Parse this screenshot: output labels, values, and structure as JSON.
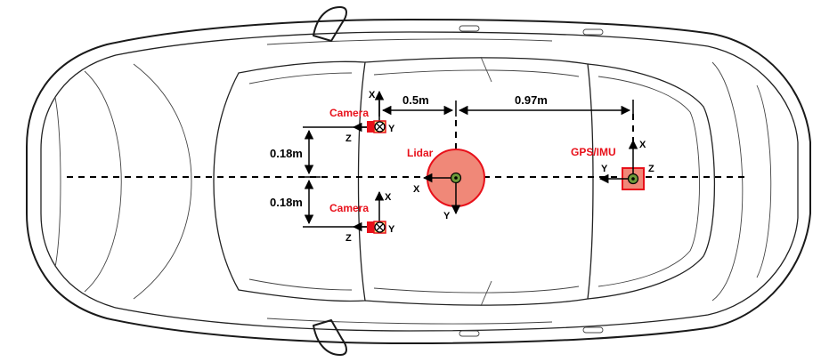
{
  "labels": {
    "camera_top": "Camera",
    "camera_bottom": "Camera",
    "lidar": "Lidar",
    "gps_imu": "GPS/IMU"
  },
  "dimensions": {
    "camera_lidar_dx": "0.5m",
    "lidar_gps_dx": "0.97m",
    "camera_top_dy": "0.18m",
    "camera_bottom_dy": "0.18m"
  },
  "axes": {
    "camera_top": {
      "x": "X",
      "y": "Y",
      "z": "Z"
    },
    "camera_bottom": {
      "x": "X",
      "y": "Y",
      "z": "Z"
    },
    "lidar": {
      "x": "X",
      "y": "Y"
    },
    "gps_imu": {
      "x": "X",
      "y": "Y",
      "z": "Z"
    }
  },
  "colors": {
    "sensor_fill": "#f08878",
    "sensor_red": "#e8101a",
    "sensor_center": "#6e9b3a"
  }
}
